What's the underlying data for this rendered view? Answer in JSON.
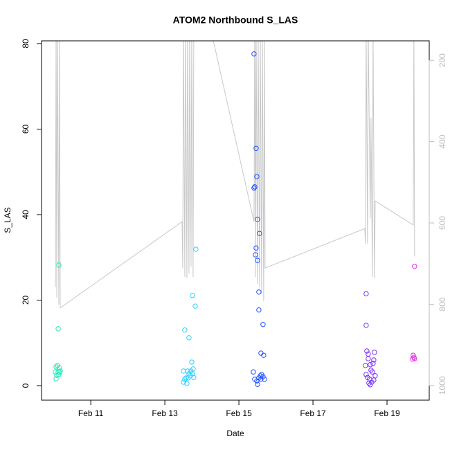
{
  "chart_data": {
    "type": "scatter",
    "title": "ATOM2 Northbound S_LAS",
    "x_label": "Date",
    "y_label": "S_LAS",
    "xlim": [
      9.67,
      20.14
    ],
    "xticks": [
      {
        "value": 11,
        "label": "Feb 11"
      },
      {
        "value": 13,
        "label": "Feb 13"
      },
      {
        "value": 15,
        "label": "Feb 15"
      },
      {
        "value": 17,
        "label": "Feb 17"
      },
      {
        "value": 19,
        "label": "Feb 19"
      }
    ],
    "ylim": [
      -3.4,
      80.65
    ],
    "yticks": [
      0,
      20,
      40,
      60,
      80
    ],
    "y2lim": [
      1036,
      152
    ],
    "y2ticks": [
      200,
      400,
      600,
      800,
      1000
    ],
    "y2_color": "#bbbbbb",
    "series": [
      {
        "color": "#1de9b6",
        "x": [
          10.137,
          10.119,
          10.063,
          10.1,
          10.155,
          10.044,
          10.119,
          10.175,
          10.081,
          10.137,
          10.063,
          10.155
        ],
        "values": [
          28.2,
          13.3,
          4.4,
          4.7,
          4.2,
          3.2,
          3.2,
          3.4,
          2.4,
          2.6,
          1.6,
          3.1
        ]
      },
      {
        "color": "#33ccff",
        "x": [
          13.838,
          13.82,
          13.745,
          13.539,
          13.651,
          13.726,
          13.502,
          13.614,
          13.707,
          13.763,
          13.651,
          13.577,
          13.688,
          13.782,
          13.539,
          13.502,
          13.595,
          13.633,
          13.745
        ],
        "values": [
          31.9,
          18.6,
          21.1,
          13.0,
          11.2,
          5.5,
          3.4,
          3.4,
          3.4,
          3.9,
          2.8,
          1.8,
          2.3,
          1.9,
          1.5,
          0.8,
          0.5,
          1.8,
          2.8
        ]
      },
      {
        "color": "#1f4fff",
        "x": [
          15.408,
          15.464,
          15.483,
          15.427,
          15.408,
          15.502,
          15.558,
          15.464,
          15.445,
          15.502,
          15.539,
          15.539,
          15.651,
          15.595,
          15.67,
          15.39,
          15.427,
          15.483,
          15.502,
          15.577,
          15.614,
          15.651,
          15.689,
          15.595,
          15.539
        ],
        "values": [
          77.6,
          55.5,
          48.9,
          46.5,
          46.2,
          38.9,
          35.6,
          32.2,
          30.6,
          29.3,
          21.9,
          17.7,
          14.3,
          7.6,
          7.1,
          3.2,
          1.5,
          1.1,
          0.3,
          2.3,
          2.6,
          2.1,
          1.5,
          1.5,
          1.8
        ]
      },
      {
        "color": "#7a2bff",
        "x": [
          18.436,
          18.436,
          18.455,
          18.492,
          18.661,
          18.492,
          18.642,
          18.548,
          18.418,
          18.623,
          18.567,
          18.605,
          18.436,
          18.68,
          18.474,
          18.53,
          18.586,
          18.511,
          18.548,
          18.642
        ],
        "values": [
          21.5,
          14.1,
          8.1,
          7.4,
          7.8,
          6.3,
          6.0,
          4.9,
          4.7,
          5.2,
          3.6,
          3.2,
          2.6,
          2.3,
          1.9,
          1.5,
          0.8,
          0.6,
          0.2,
          1.3
        ]
      },
      {
        "color": "#ee22ee",
        "x": [
          19.745,
          19.708,
          19.726,
          19.745,
          19.689
        ],
        "values": [
          27.9,
          7.1,
          6.6,
          6.3,
          6.2
        ]
      },
      {
        "type": "line",
        "axis": "y2",
        "color": "#c8c8c8",
        "x": [
          10.044,
          10.063,
          10.081,
          10.1,
          10.137,
          10.155,
          10.175,
          13.464,
          13.483,
          13.502,
          13.539,
          13.558,
          13.595,
          13.614,
          13.651,
          13.67,
          13.707,
          13.726,
          13.763,
          13.782,
          14.231,
          15.408,
          15.427,
          15.445,
          15.464,
          15.502,
          15.52,
          15.558,
          15.577,
          15.614,
          15.633,
          15.67,
          15.689,
          15.707,
          18.399,
          18.418,
          18.436,
          18.474,
          18.492,
          18.548,
          18.567,
          18.605,
          18.623,
          18.661,
          18.68,
          19.708,
          19.726,
          19.745
        ],
        "values": [
          758,
          120,
          784,
          120,
          801,
          120,
          809,
          597,
          712,
          120,
          733,
          120,
          736,
          120,
          724,
          120,
          707,
          120,
          733,
          120,
          120,
          597,
          120,
          733,
          120,
          750,
          120,
          758,
          120,
          775,
          120,
          792,
          120,
          711,
          614,
          651,
          120,
          651,
          120,
          588,
          341,
          733,
          120,
          736,
          546,
          605,
          120,
          682
        ]
      }
    ]
  }
}
